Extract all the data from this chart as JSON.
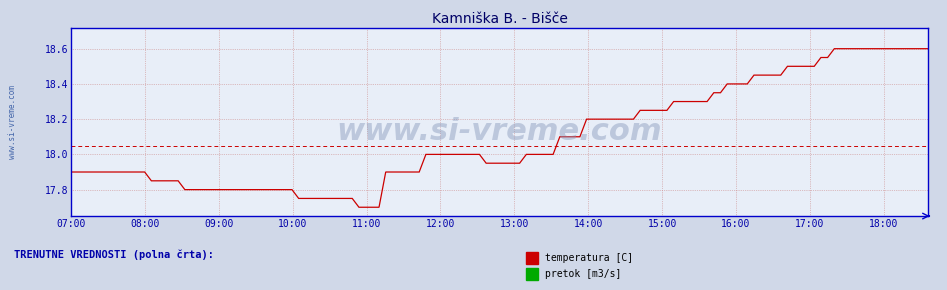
{
  "title": "Kamniška B. - Bišče",
  "title_color": "#000066",
  "title_fontsize": 10,
  "bg_color": "#d0d8e8",
  "plot_bg_color": "#e8eef8",
  "ylim": [
    17.65,
    18.72
  ],
  "yticks": [
    17.8,
    18.0,
    18.2,
    18.4,
    18.6
  ],
  "xlim_start": 7.0,
  "xlim_end": 18.6,
  "xtick_positions": [
    7,
    8,
    9,
    10,
    11,
    12,
    13,
    14,
    15,
    16,
    17,
    18
  ],
  "xtick_labels": [
    "07:00",
    "08:00",
    "09:00",
    "10:00",
    "11:00",
    "12:00",
    "13:00",
    "14:00",
    "15:00",
    "16:00",
    "17:00",
    "18:00"
  ],
  "avg_line": 18.05,
  "avg_line_color": "#cc0000",
  "line_color": "#cc0000",
  "watermark_text": "www.si-vreme.com",
  "watermark_color": "#8899bb",
  "watermark_alpha": 0.45,
  "watermark_fontsize": 22,
  "sidebar_text": "www.si-vreme.com",
  "sidebar_color": "#4466aa",
  "legend_label1": "temperatura [C]",
  "legend_label2": "pretok [m3/s]",
  "legend_color1": "#cc0000",
  "legend_color2": "#00aa00",
  "footer_text": "TRENUTNE VREDNOSTI (polna črta):",
  "footer_color": "#0000aa",
  "grid_color": "#cc8888",
  "tick_color": "#0000aa",
  "spine_color": "#0000cc",
  "temperature_data": [
    17.9,
    17.9,
    17.9,
    17.9,
    17.9,
    17.9,
    17.9,
    17.9,
    17.9,
    17.9,
    17.9,
    17.9,
    17.85,
    17.85,
    17.85,
    17.85,
    17.85,
    17.8,
    17.8,
    17.8,
    17.8,
    17.8,
    17.8,
    17.8,
    17.8,
    17.8,
    17.8,
    17.8,
    17.8,
    17.8,
    17.8,
    17.8,
    17.8,
    17.8,
    17.75,
    17.75,
    17.75,
    17.75,
    17.75,
    17.75,
    17.75,
    17.75,
    17.75,
    17.7,
    17.7,
    17.7,
    17.7,
    17.9,
    17.9,
    17.9,
    17.9,
    17.9,
    17.9,
    18.0,
    18.0,
    18.0,
    18.0,
    18.0,
    18.0,
    18.0,
    18.0,
    18.0,
    17.95,
    17.95,
    17.95,
    17.95,
    17.95,
    17.95,
    18.0,
    18.0,
    18.0,
    18.0,
    18.0,
    18.1,
    18.1,
    18.1,
    18.1,
    18.2,
    18.2,
    18.2,
    18.2,
    18.2,
    18.2,
    18.2,
    18.2,
    18.25,
    18.25,
    18.25,
    18.25,
    18.25,
    18.3,
    18.3,
    18.3,
    18.3,
    18.3,
    18.3,
    18.35,
    18.35,
    18.4,
    18.4,
    18.4,
    18.4,
    18.45,
    18.45,
    18.45,
    18.45,
    18.45,
    18.5,
    18.5,
    18.5,
    18.5,
    18.5,
    18.55,
    18.55,
    18.6,
    18.6,
    18.6,
    18.6,
    18.6,
    18.6,
    18.6,
    18.6,
    18.6,
    18.6,
    18.6,
    18.6,
    18.6,
    18.6,
    18.6
  ]
}
